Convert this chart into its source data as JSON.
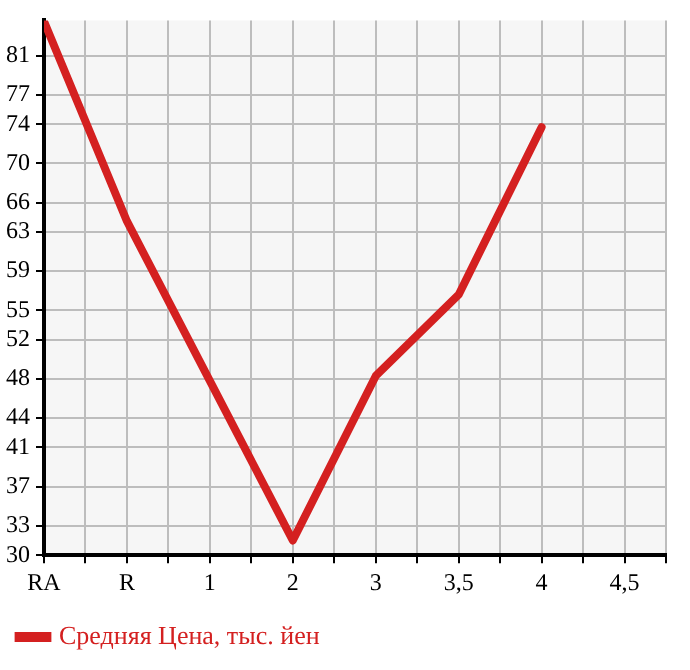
{
  "chart_data": {
    "type": "line",
    "categories": [
      "RA",
      "R",
      "1",
      "2",
      "3",
      "3,5",
      "4",
      "4,5"
    ],
    "series": [
      {
        "name": "Средняя Цена, тыс. йен",
        "color": "#d42020",
        "values": [
          84.5,
          64.1,
          47.8,
          31.5,
          48.3,
          56.6,
          73.7,
          null
        ]
      }
    ],
    "ylim": [
      30,
      84.6
    ],
    "yticks": [
      30,
      33,
      37,
      41,
      44,
      48,
      52,
      55,
      59,
      63,
      66,
      70,
      74,
      77,
      81
    ],
    "grid": true,
    "legend": "bottom left",
    "marker": "none",
    "line_style": "solid"
  }
}
